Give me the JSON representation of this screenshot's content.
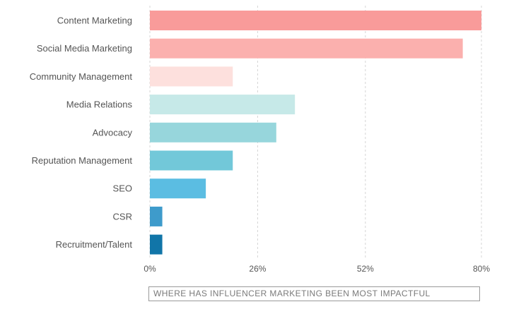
{
  "chart_data": {
    "type": "bar",
    "orientation": "horizontal",
    "categories": [
      "Content Marketing",
      "Social Media Marketing",
      "Community Management",
      "Media Relations",
      "Advocacy",
      "Reputation Management",
      "SEO",
      "CSR",
      "Recruitment/Talent"
    ],
    "values": [
      80,
      75.5,
      20,
      35,
      30.5,
      20,
      13.5,
      3,
      3
    ],
    "colors": [
      "#f99b9a",
      "#fbb0ae",
      "#fde0dd",
      "#c6e9e8",
      "#97d6dc",
      "#72c8d9",
      "#5bbde2",
      "#3e9bcb",
      "#1175a8"
    ],
    "xlim": [
      0,
      80
    ],
    "x_ticks": [
      "0%",
      "26%",
      "52%",
      "80%"
    ],
    "x_tick_values": [
      0,
      26,
      52,
      80
    ],
    "grid": "vertical dashed",
    "caption": "WHERE HAS INFLUENCER MARKETING BEEN MOST IMPACTFUL"
  }
}
